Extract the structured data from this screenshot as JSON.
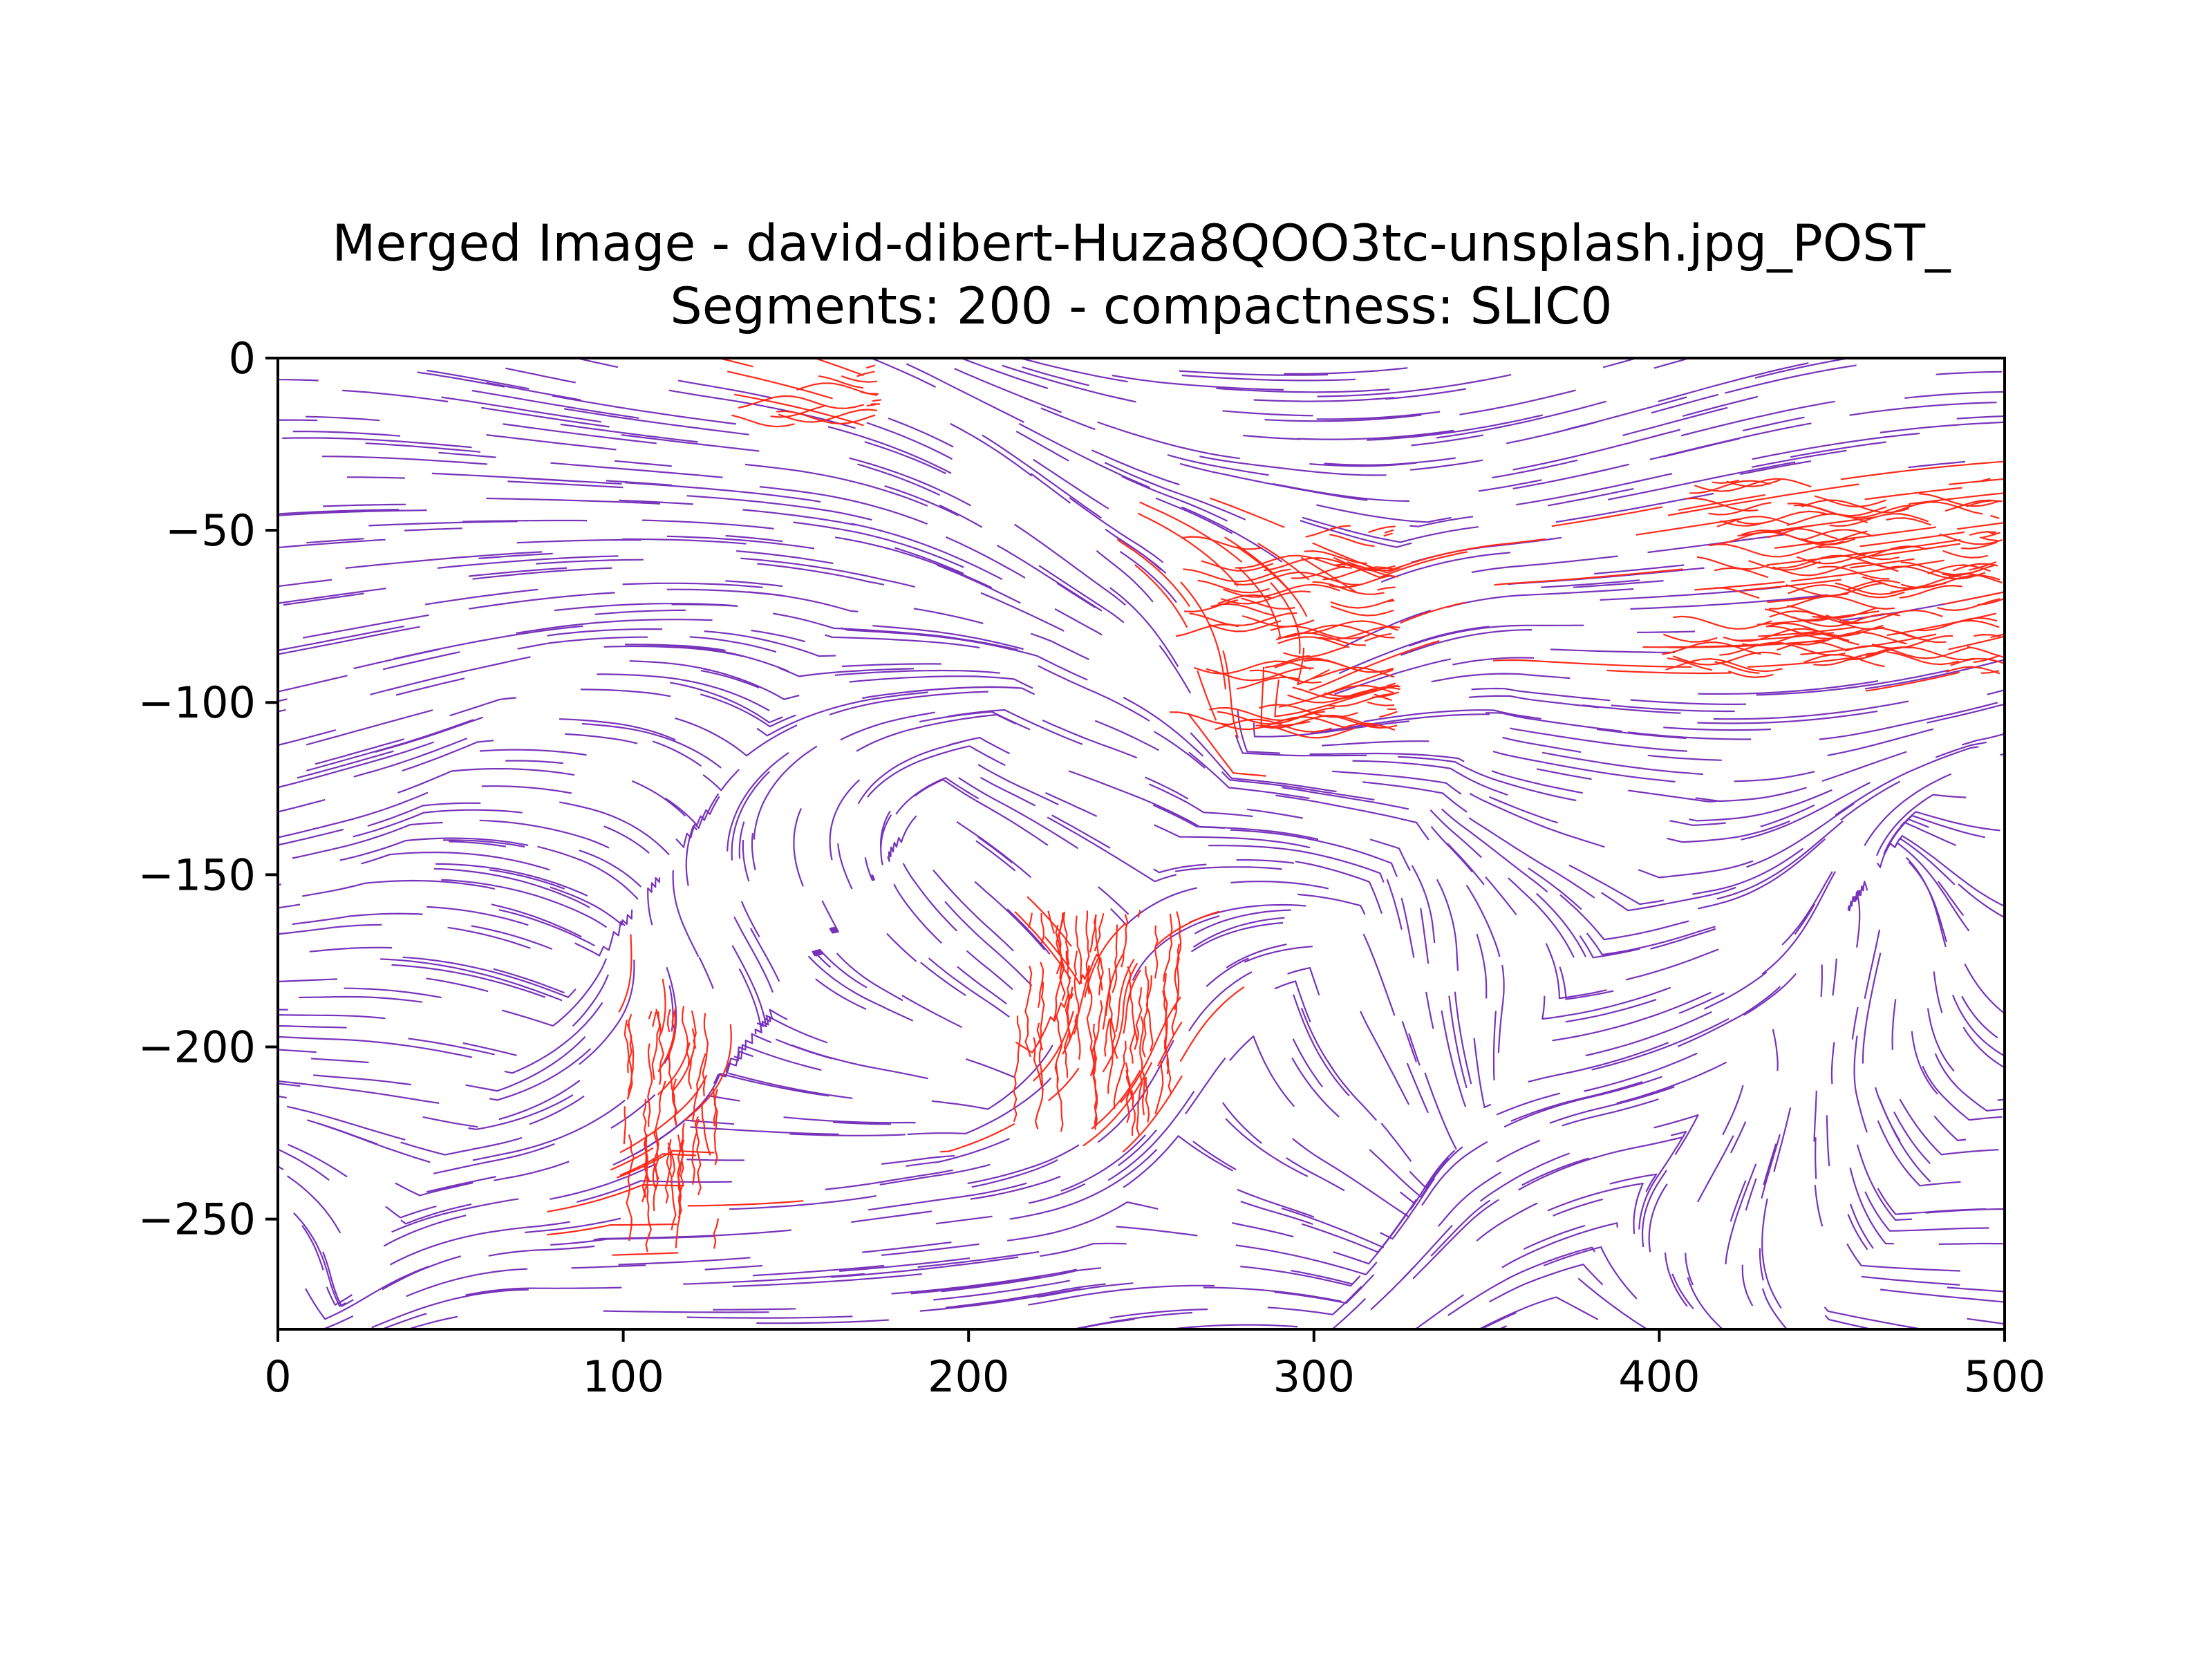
{
  "chart_data": {
    "type": "line",
    "title_line1": "Merged Image - david-dibert-Huza8QOO3tc-unsplash.jpg_POST_",
    "title_line2": "Segments: 200 - compactness: SLIC0",
    "xlabel": "",
    "ylabel": "",
    "xlim": [
      0,
      500
    ],
    "ylim": [
      -282,
      0
    ],
    "xticks": [
      0,
      100,
      200,
      300,
      400,
      500
    ],
    "yticks": [
      0,
      -50,
      -100,
      -150,
      -200,
      -250
    ],
    "xtick_labels": [
      "0",
      "100",
      "200",
      "300",
      "400",
      "500"
    ],
    "ytick_labels": [
      "0",
      "−50",
      "−100",
      "−150",
      "−200",
      "−250"
    ],
    "grid": false,
    "legend": false,
    "series_colors": {
      "contours": "#7733bb",
      "highlight": "#ff2a1a"
    },
    "highlight_regions": [
      {
        "x": [
          130,
          175
        ],
        "y": [
          -17,
          0
        ]
      },
      {
        "x": [
          258,
          325
        ],
        "y": [
          -108,
          -48
        ]
      },
      {
        "x": [
          400,
          500
        ],
        "y": [
          -92,
          -35
        ]
      },
      {
        "x": [
          98,
          128
        ],
        "y": [
          -262,
          -188
        ]
      },
      {
        "x": [
          213,
          262
        ],
        "y": [
          -226,
          -160
        ]
      }
    ]
  }
}
